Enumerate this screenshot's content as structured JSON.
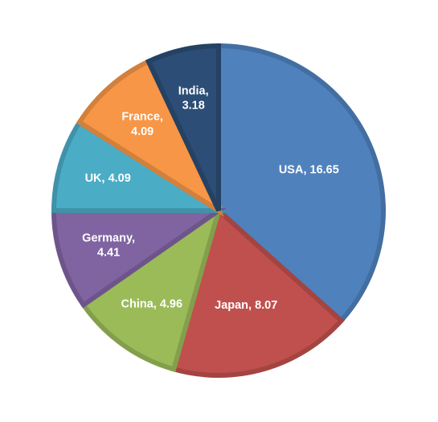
{
  "chart_data": {
    "type": "pie",
    "values": [
      16.65,
      8.07,
      4.96,
      4.41,
      4.09,
      4.09,
      3.18
    ],
    "value_labels": [
      "USA, 16.65",
      "Japan, 8.07",
      "China, 4.96",
      "Germany, 4.41",
      "UK, 4.09",
      "France, 4.09",
      "India, 3.18"
    ],
    "colors": [
      "#4f81bd",
      "#c0504d",
      "#9bbb59",
      "#8064a2",
      "#4bacc6",
      "#f79646",
      "#2c4d75"
    ]
  }
}
